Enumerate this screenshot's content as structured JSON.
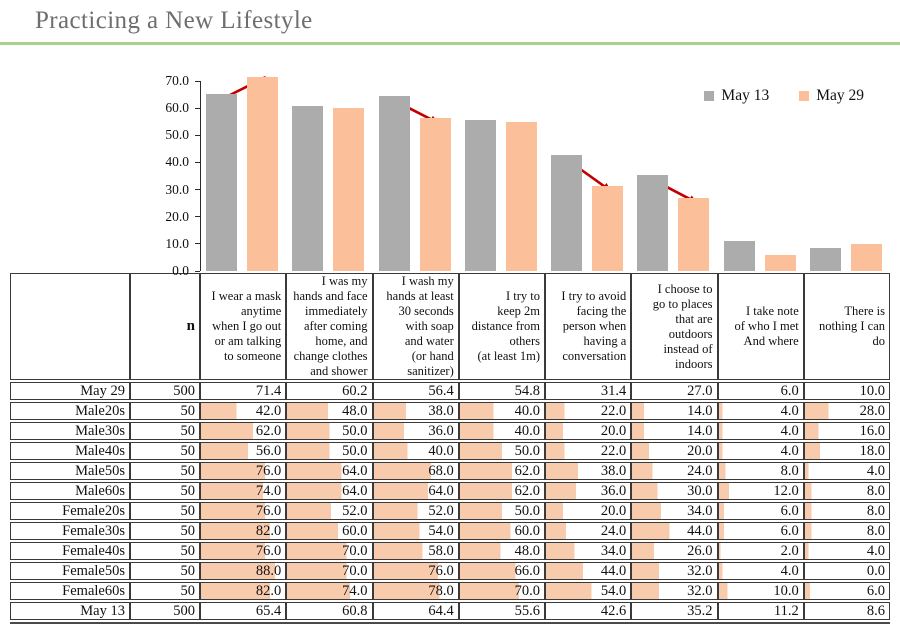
{
  "header": {
    "title": "Practicing a New Lifestyle"
  },
  "chart_data": {
    "type": "bar",
    "title": "",
    "xlabel": "",
    "ylabel": "",
    "ylim": [
      0,
      70
    ],
    "ytick_step": 10,
    "grid": false,
    "legend_position": "top-right",
    "categories": [
      "I wear a mask\nanytime\nwhen I go out\nor am talking\nto someone",
      "I was my\nhands and face\nimmediately\nafter coming\nhome, and\nchange clothes\nand shower",
      "I wash my\nhands at least\n30 seconds\nwith soap\nand water\n(or hand\nsanitizer)",
      "I try to\nkeep 2m\ndistance from\nothers\n(at least 1m)",
      "I try to avoid\nfacing the\nperson when\nhaving a\nconversation",
      "I choose to\ngo to places\nthat are\noutdoors\ninstead of\nindoors",
      "I take note\nof who I met\nAnd where",
      "There is\nnothing I can\ndo"
    ],
    "series": [
      {
        "name": "May 13",
        "color": "#ACACAC",
        "values": [
          65.4,
          60.8,
          64.4,
          55.6,
          42.6,
          35.2,
          11.2,
          8.6
        ]
      },
      {
        "name": "May 29",
        "color": "#FBBF99",
        "values": [
          71.4,
          60.2,
          56.4,
          54.8,
          31.4,
          27.0,
          6.0,
          10.0
        ]
      }
    ],
    "annotations": {
      "arrow_color": "#C00000",
      "arrows": [
        {
          "category_index": 0,
          "direction": "up"
        },
        {
          "category_index": 2,
          "direction": "down"
        },
        {
          "category_index": 4,
          "direction": "down"
        },
        {
          "category_index": 5,
          "direction": "down"
        }
      ]
    }
  },
  "table": {
    "n_header": "n",
    "bar_color": "#F8CBAD",
    "rows": [
      {
        "label": "May 29",
        "n": "500",
        "bars": false,
        "values": [
          71.4,
          60.2,
          56.4,
          54.8,
          31.4,
          27.0,
          6.0,
          10.0
        ]
      },
      {
        "label": "Male20s",
        "n": "50",
        "bars": true,
        "values": [
          42.0,
          48.0,
          38.0,
          40.0,
          22.0,
          14.0,
          4.0,
          28.0
        ]
      },
      {
        "label": "Male30s",
        "n": "50",
        "bars": true,
        "values": [
          62.0,
          50.0,
          36.0,
          40.0,
          20.0,
          14.0,
          4.0,
          16.0
        ]
      },
      {
        "label": "Male40s",
        "n": "50",
        "bars": true,
        "values": [
          56.0,
          50.0,
          40.0,
          50.0,
          22.0,
          20.0,
          4.0,
          18.0
        ]
      },
      {
        "label": "Male50s",
        "n": "50",
        "bars": true,
        "values": [
          76.0,
          64.0,
          68.0,
          62.0,
          38.0,
          24.0,
          8.0,
          4.0
        ]
      },
      {
        "label": "Male60s",
        "n": "50",
        "bars": true,
        "values": [
          74.0,
          64.0,
          64.0,
          62.0,
          36.0,
          30.0,
          12.0,
          8.0
        ]
      },
      {
        "label": "Female20s",
        "n": "50",
        "bars": true,
        "values": [
          76.0,
          52.0,
          52.0,
          50.0,
          20.0,
          34.0,
          6.0,
          8.0
        ]
      },
      {
        "label": "Female30s",
        "n": "50",
        "bars": true,
        "values": [
          82.0,
          60.0,
          54.0,
          60.0,
          24.0,
          44.0,
          6.0,
          8.0
        ]
      },
      {
        "label": "Female40s",
        "n": "50",
        "bars": true,
        "values": [
          76.0,
          70.0,
          58.0,
          48.0,
          34.0,
          26.0,
          2.0,
          4.0
        ]
      },
      {
        "label": "Female50s",
        "n": "50",
        "bars": true,
        "values": [
          88.0,
          70.0,
          76.0,
          66.0,
          44.0,
          32.0,
          4.0,
          0.0
        ]
      },
      {
        "label": "Female60s",
        "n": "50",
        "bars": true,
        "values": [
          82.0,
          74.0,
          78.0,
          70.0,
          54.0,
          32.0,
          10.0,
          6.0
        ]
      },
      {
        "label": "May 13",
        "n": "500",
        "bars": false,
        "values": [
          65.4,
          60.8,
          64.4,
          55.6,
          42.6,
          35.2,
          11.2,
          8.6
        ]
      }
    ]
  }
}
